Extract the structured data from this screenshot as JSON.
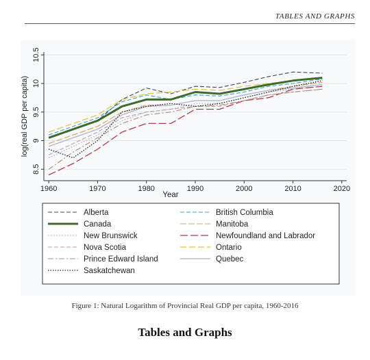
{
  "page": {
    "running_head": "TABLES AND GRAPHS",
    "caption": "Figure 1: Natural Logarithm of Provincial Real GDP per capita, 1960-2016",
    "section_heading": "Tables and Graphs"
  },
  "chart_data": {
    "type": "line",
    "title": "",
    "xlabel": "Year",
    "ylabel": "log(real GDP per capita)",
    "xlim": [
      1959,
      2021
    ],
    "ylim": [
      8.3,
      10.55
    ],
    "xticks": [
      1960,
      1970,
      1980,
      1990,
      2000,
      2010,
      2020
    ],
    "yticks": [
      8.5,
      9,
      9.5,
      10,
      10.5
    ],
    "grid": "horizontal",
    "legend_position": "below",
    "x": [
      1960,
      1965,
      1970,
      1975,
      1980,
      1985,
      1990,
      1995,
      2000,
      2005,
      2010,
      2016
    ],
    "series": [
      {
        "name": "Alberta",
        "color": "#3e4a5c",
        "dash": "6,3",
        "width": 1.1,
        "values": [
          9.05,
          9.2,
          9.35,
          9.72,
          9.92,
          9.82,
          9.95,
          9.93,
          10.02,
          10.12,
          10.2,
          10.18
        ]
      },
      {
        "name": "British Columbia",
        "color": "#3aa0c8",
        "dash": "6,3",
        "width": 1.1,
        "values": [
          9.1,
          9.25,
          9.4,
          9.68,
          9.8,
          9.72,
          9.8,
          9.78,
          9.85,
          9.95,
          10.0,
          10.08
        ]
      },
      {
        "name": "Canada",
        "color": "#3f6b2a",
        "dash": "",
        "width": 3,
        "values": [
          9.05,
          9.2,
          9.35,
          9.6,
          9.72,
          9.72,
          9.85,
          9.82,
          9.9,
          9.98,
          10.05,
          10.1
        ]
      },
      {
        "name": "Manitoba",
        "color": "#d9a050",
        "dash": "9,3",
        "width": 1.1,
        "values": [
          8.95,
          9.1,
          9.25,
          9.5,
          9.62,
          9.62,
          9.7,
          9.7,
          9.8,
          9.88,
          9.95,
          10.02
        ]
      },
      {
        "name": "New Brunswick",
        "color": "#9ab0c8",
        "dash": "1.5,2.5",
        "width": 1.2,
        "values": [
          8.7,
          8.9,
          9.1,
          9.35,
          9.5,
          9.55,
          9.65,
          9.65,
          9.75,
          9.85,
          9.9,
          9.95
        ]
      },
      {
        "name": "Newfoundland and Labrador",
        "color": "#b23a48",
        "dash": "11,4",
        "width": 1.3,
        "values": [
          8.4,
          8.6,
          8.85,
          9.15,
          9.3,
          9.3,
          9.55,
          9.55,
          9.7,
          9.75,
          9.9,
          9.95
        ]
      },
      {
        "name": "Nova Scotia",
        "color": "#c69aa2",
        "dash": "6,3",
        "width": 1.1,
        "values": [
          8.75,
          8.95,
          9.15,
          9.4,
          9.5,
          9.55,
          9.6,
          9.6,
          9.7,
          9.8,
          9.85,
          9.9
        ]
      },
      {
        "name": "Ontario",
        "color": "#e4c230",
        "dash": "9,4",
        "width": 1.2,
        "values": [
          9.15,
          9.3,
          9.45,
          9.72,
          9.82,
          9.85,
          9.9,
          9.88,
          9.95,
          10.0,
          10.05,
          10.1
        ]
      },
      {
        "name": "Prince Edward Island",
        "color": "#b08a70",
        "dash": "8,3,2,3",
        "width": 1.1,
        "values": [
          8.5,
          8.8,
          9.05,
          9.3,
          9.45,
          9.5,
          9.6,
          9.62,
          9.7,
          9.8,
          9.85,
          9.9
        ]
      },
      {
        "name": "Quebec",
        "color": "#b8bed0",
        "dash": "",
        "width": 1.6,
        "values": [
          8.9,
          9.05,
          9.2,
          9.45,
          9.6,
          9.62,
          9.7,
          9.7,
          9.8,
          9.88,
          9.92,
          9.98
        ]
      },
      {
        "name": "Saskatchewan",
        "color": "#222222",
        "dash": "1.5,2",
        "width": 1.3,
        "values": [
          8.85,
          8.7,
          9.0,
          9.5,
          9.6,
          9.65,
          9.6,
          9.65,
          9.75,
          9.85,
          9.95,
          10.05
        ]
      }
    ]
  }
}
